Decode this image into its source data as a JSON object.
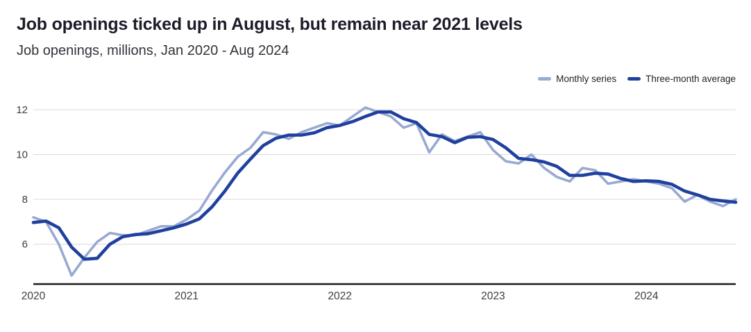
{
  "header": {
    "title": "Job openings ticked up in August, but remain near 2021 levels",
    "subtitle": "Job openings, millions, Jan 2020 - Aug 2024"
  },
  "legend": {
    "items": [
      {
        "label": "Monthly series",
        "color": "#98a9d2"
      },
      {
        "label": "Three-month average",
        "color": "#1f409e"
      }
    ]
  },
  "chart_data": {
    "type": "line",
    "title": "Job openings ticked up in August, but remain near 2021 levels",
    "subtitle": "Job openings, millions, Jan 2020 - Aug 2024",
    "unit": "millions of job openings",
    "frequency": "monthly",
    "x_start": "Jan 2020",
    "x_end": "Aug 2024",
    "grid": true,
    "legend_position": "top-right",
    "ylim": [
      4.22,
      12
    ],
    "y_ticks": [
      {
        "value": 6,
        "label": "6"
      },
      {
        "value": 8,
        "label": "8"
      },
      {
        "value": 10,
        "label": "10"
      },
      {
        "value": 12,
        "label": "12"
      }
    ],
    "x_ticks": [
      {
        "pos": 0,
        "label": "2020"
      },
      {
        "pos": 12,
        "label": "2021"
      },
      {
        "pos": 24,
        "label": "2022"
      },
      {
        "pos": 36,
        "label": "2023"
      },
      {
        "pos": 48,
        "label": "2024"
      }
    ],
    "series": [
      {
        "name": "Monthly series",
        "color": "#98a9d2",
        "values": [
          7.2,
          7.0,
          6.0,
          4.6,
          5.4,
          6.1,
          6.5,
          6.4,
          6.4,
          6.6,
          6.8,
          6.8,
          7.1,
          7.5,
          8.4,
          9.2,
          9.9,
          10.3,
          11.0,
          10.9,
          10.7,
          11.0,
          11.2,
          11.4,
          11.3,
          11.7,
          12.1,
          11.9,
          11.7,
          11.2,
          11.4,
          10.1,
          10.9,
          10.6,
          10.8,
          11.0,
          10.2,
          9.7,
          9.6,
          10.0,
          9.4,
          9.0,
          8.8,
          9.4,
          9.3,
          8.7,
          8.8,
          8.9,
          8.8,
          8.7,
          8.5,
          7.9,
          8.2,
          7.9,
          7.7,
          8.0
        ]
      },
      {
        "name": "Three-month average",
        "color": "#1f409e",
        "values": [
          6.97,
          7.03,
          6.73,
          5.87,
          5.33,
          5.37,
          6.0,
          6.33,
          6.43,
          6.47,
          6.6,
          6.73,
          6.9,
          7.13,
          7.67,
          8.37,
          9.17,
          9.8,
          10.4,
          10.73,
          10.87,
          10.87,
          10.97,
          11.2,
          11.3,
          11.47,
          11.7,
          11.9,
          11.9,
          11.6,
          11.43,
          10.9,
          10.8,
          10.53,
          10.77,
          10.8,
          10.67,
          10.3,
          9.83,
          9.77,
          9.67,
          9.47,
          9.07,
          9.07,
          9.17,
          9.13,
          8.93,
          8.8,
          8.83,
          8.8,
          8.67,
          8.37,
          8.2,
          8.0,
          7.93,
          7.87
        ]
      }
    ]
  }
}
